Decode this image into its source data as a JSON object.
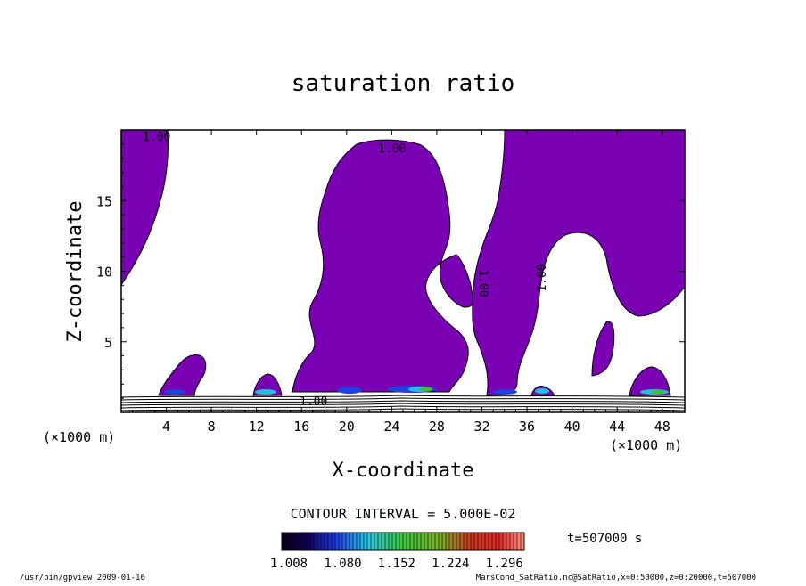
{
  "chart_data": {
    "type": "contour",
    "title": "saturation ratio",
    "xlabel": "X-coordinate",
    "ylabel": "Z-coordinate",
    "x_unit": "(×1000 m)",
    "y_unit": "(×1000 m)",
    "xlim": [
      0,
      50
    ],
    "ylim": [
      0,
      20
    ],
    "x_ticks": [
      4,
      8,
      12,
      16,
      20,
      24,
      28,
      32,
      36,
      40,
      44,
      48
    ],
    "y_ticks": [
      5,
      10,
      15
    ],
    "contour_labels": [
      "1.00",
      "1.00",
      "1.00",
      "1.00",
      "1.00"
    ],
    "contour_interval_text": "CONTOUR INTERVAL = 5.000E-02",
    "colorbar": {
      "tick_labels": [
        "1.008",
        "1.080",
        "1.152",
        "1.224",
        "1.296"
      ],
      "range": [
        1.008,
        1.332
      ],
      "colors": {
        "fill_main": "#7a00b4",
        "dark": "#1a0048",
        "blue": "#2040e0",
        "cyan": "#20c0e0",
        "green": "#40c020",
        "red": "#e02020",
        "orange": "#ff8060"
      }
    },
    "time_label": "t=507000 s",
    "footer_left": "/usr/bin/gpview  2009-01-16",
    "footer_right": "MarsCond_SatRatio.nc@SatRatio,x=0:50000,z=0:20000,t=507000"
  }
}
